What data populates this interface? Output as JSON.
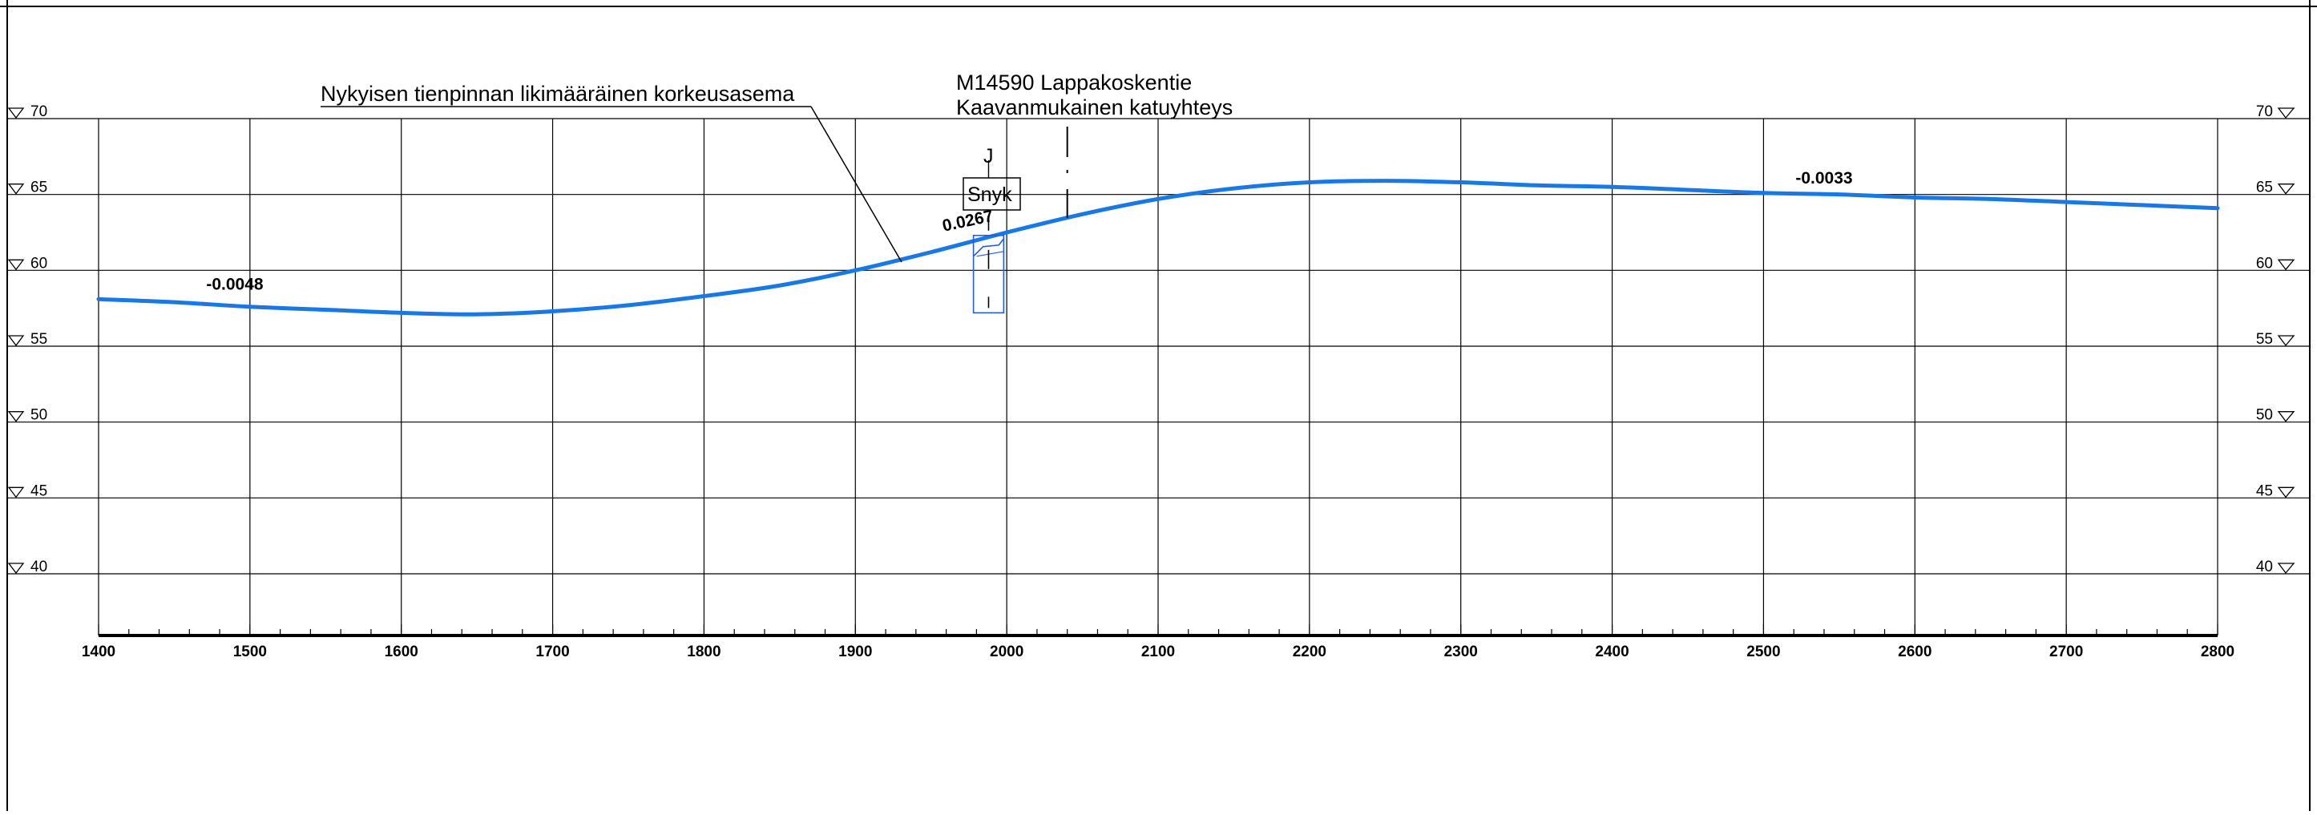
{
  "annotations": {
    "current_surface": "Nykyisen tienpinnan likimääräinen korkeusasema",
    "road_name": "M14590 Lappakoskentie",
    "road_desc": "Kaavanmukainen katuyhteys",
    "culvert_type": "Snyk",
    "culvert_letter": "J"
  },
  "colors": {
    "profile": "#1778e6",
    "grid": "#000000",
    "culvert": "#1f5fe0"
  },
  "chart_data": {
    "type": "line",
    "x_ticks": [
      "1400",
      "1500",
      "1600",
      "1700",
      "1800",
      "1900",
      "2000",
      "2100",
      "2200",
      "2300",
      "2400",
      "2500",
      "2600",
      "2700",
      "2800"
    ],
    "y_ticks": [
      "70",
      "65",
      "60",
      "55",
      "50",
      "45",
      "40"
    ],
    "xlim": [
      1400,
      2800
    ],
    "ylim": [
      40,
      70
    ],
    "grid": true,
    "series": [
      {
        "x": [
          1400,
          1450,
          1500,
          1550,
          1600,
          1650,
          1700,
          1750,
          1800,
          1850,
          1900,
          1950,
          2000,
          2050,
          2100,
          2150,
          2200,
          2250,
          2300,
          2350,
          2400,
          2450,
          2500,
          2550,
          2600,
          2650,
          2700,
          2750,
          2800
        ],
        "y": [
          58.1,
          57.9,
          57.6,
          57.4,
          57.2,
          57.1,
          57.3,
          57.7,
          58.3,
          59.0,
          60.0,
          61.2,
          62.5,
          63.7,
          64.7,
          65.4,
          65.8,
          65.9,
          65.8,
          65.6,
          65.5,
          65.3,
          65.1,
          65.0,
          64.8,
          64.7,
          64.5,
          64.3,
          64.1
        ]
      }
    ],
    "grade_labels": [
      {
        "text": "-0.0048",
        "x": 1490,
        "y": 58.5
      },
      {
        "text": "0.0267",
        "x": 1975,
        "y": 62.7
      },
      {
        "text": "-0.0033",
        "x": 2540,
        "y": 65.5
      }
    ],
    "culvert": {
      "x_left": 1978,
      "x_right": 1998,
      "y_top": 62.3,
      "y_bottom": 57.2
    },
    "road_marker_x": 2040
  }
}
